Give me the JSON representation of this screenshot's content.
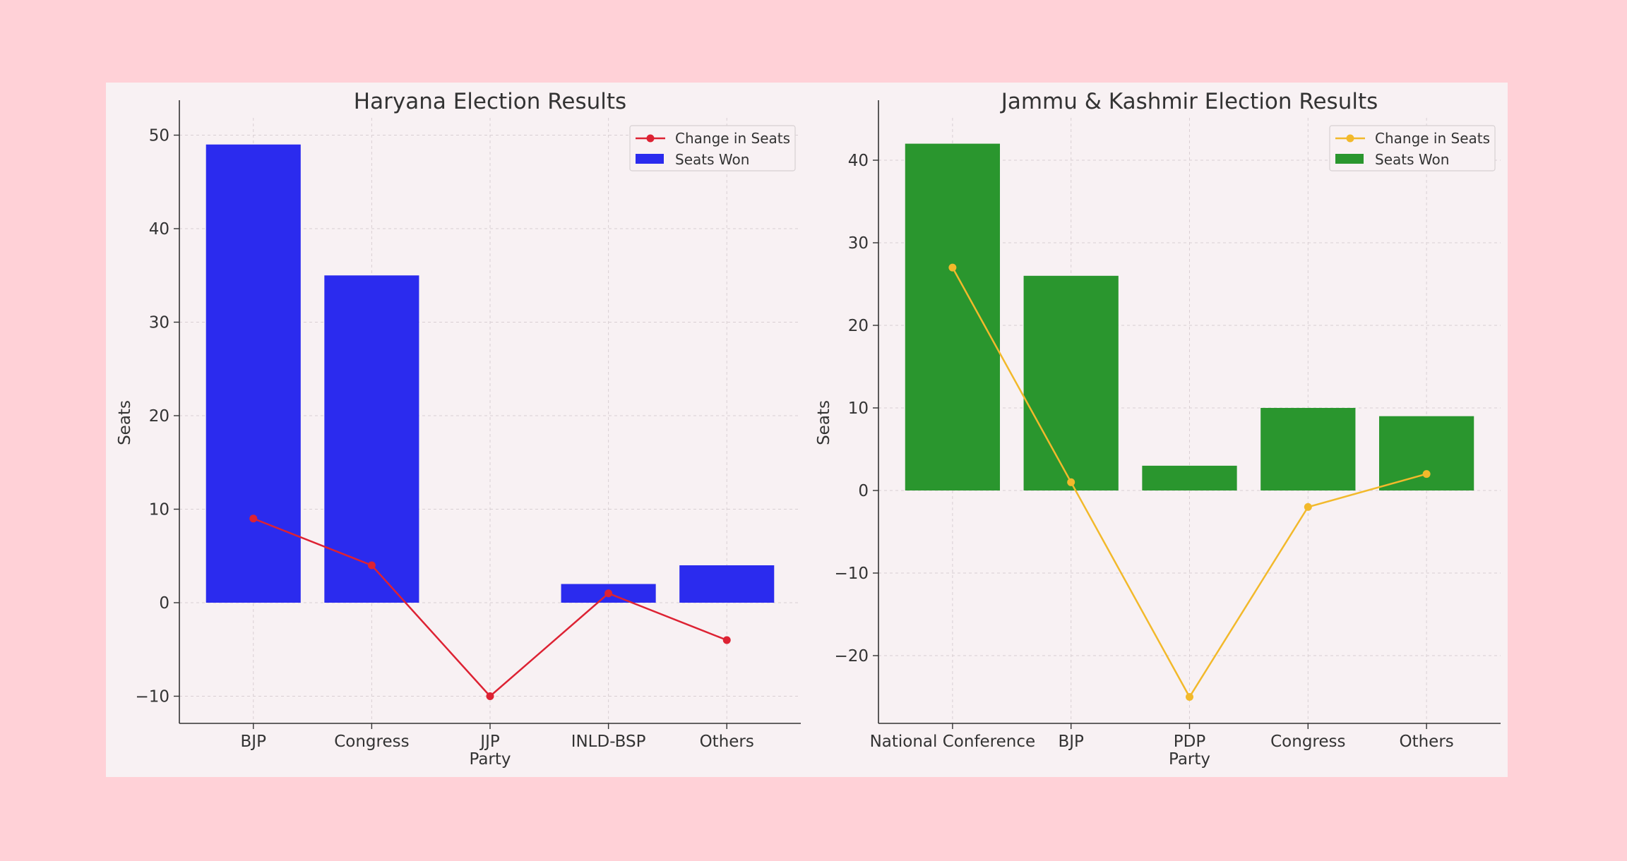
{
  "chart_data": [
    {
      "type": "bar",
      "title": "Haryana Election Results",
      "xlabel": "Party",
      "ylabel": "Seats",
      "categories": [
        "BJP",
        "Congress",
        "JJP",
        "INLD-BSP",
        "Others"
      ],
      "series": [
        {
          "name": "Seats Won",
          "type": "bar",
          "values": [
            49,
            35,
            0,
            2,
            4
          ]
        },
        {
          "name": "Change in Seats",
          "type": "line",
          "values": [
            9,
            4,
            -10,
            1,
            -4
          ]
        }
      ],
      "ylim": [
        -13,
        52
      ],
      "yticks": [
        -10,
        0,
        10,
        20,
        30,
        40,
        50
      ],
      "ytick_labels": [
        "−10",
        "0",
        "10",
        "20",
        "30",
        "40",
        "50"
      ],
      "grid": true,
      "legend": "top-right",
      "colors": {
        "bar": "#2b2bee",
        "line": "#dd2233"
      }
    },
    {
      "type": "bar",
      "title": "Jammu & Kashmir Election Results",
      "xlabel": "Party",
      "ylabel": "Seats",
      "categories": [
        "National Conference",
        "BJP",
        "PDP",
        "Congress",
        "Others"
      ],
      "series": [
        {
          "name": "Seats Won",
          "type": "bar",
          "values": [
            42,
            26,
            3,
            10,
            9
          ]
        },
        {
          "name": "Change in Seats",
          "type": "line",
          "values": [
            27,
            1,
            -25,
            -2,
            2
          ]
        }
      ],
      "ylim": [
        -28,
        45
      ],
      "yticks": [
        -20,
        -10,
        0,
        10,
        20,
        30,
        40
      ],
      "ytick_labels": [
        "−20",
        "−10",
        "0",
        "10",
        "20",
        "30",
        "40"
      ],
      "grid": true,
      "legend": "top-right",
      "colors": {
        "bar": "#2a962e",
        "line": "#f2b92b"
      }
    }
  ]
}
